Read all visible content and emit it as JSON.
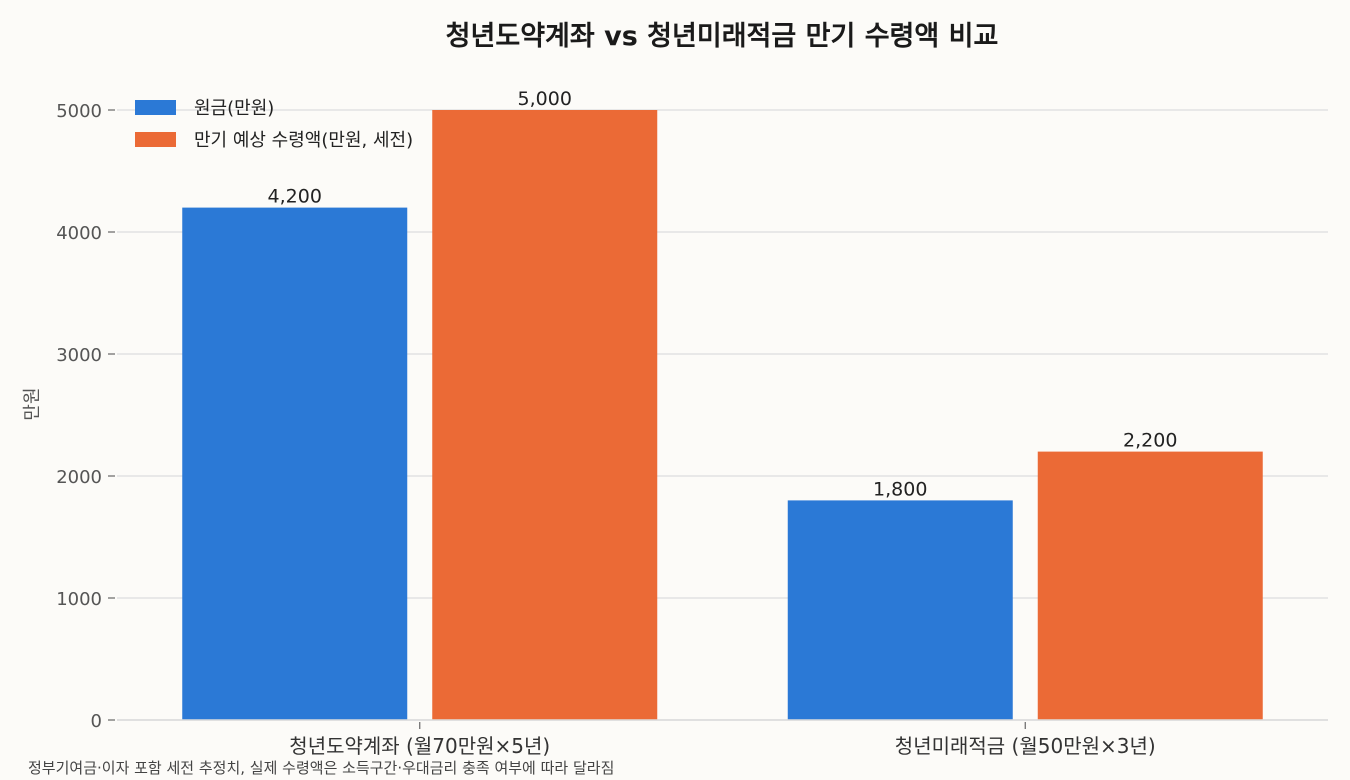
{
  "chart_data": {
    "type": "bar",
    "title": "청년도약계좌 vs 청년미래적금 만기 수령액 비교",
    "categories": [
      "청년도약계좌 (월70만원×5년)",
      "청년미래적금 (월50만원×3년)"
    ],
    "series": [
      {
        "name": "원금(만원)",
        "values": [
          4200,
          1800
        ],
        "value_labels": [
          "4,200",
          "1,800"
        ],
        "color": "#2b79d6"
      },
      {
        "name": "만기 예상 수령액(만원, 세전)",
        "values": [
          5000,
          2200
        ],
        "value_labels": [
          "5,000",
          "2,200"
        ],
        "color": "#eb6a36"
      }
    ],
    "ylabel": "만원",
    "ylim": [
      0,
      5000
    ],
    "yticks": [
      "0",
      "1000",
      "2000",
      "3000",
      "4000",
      "5000"
    ],
    "grid": "horizontal",
    "legend": "top-left",
    "footnote": "정부기여금·이자 포함 세전 추정치, 실제 수령액은 소득구간·우대금리 충족 여부에 따라 달라짐"
  }
}
